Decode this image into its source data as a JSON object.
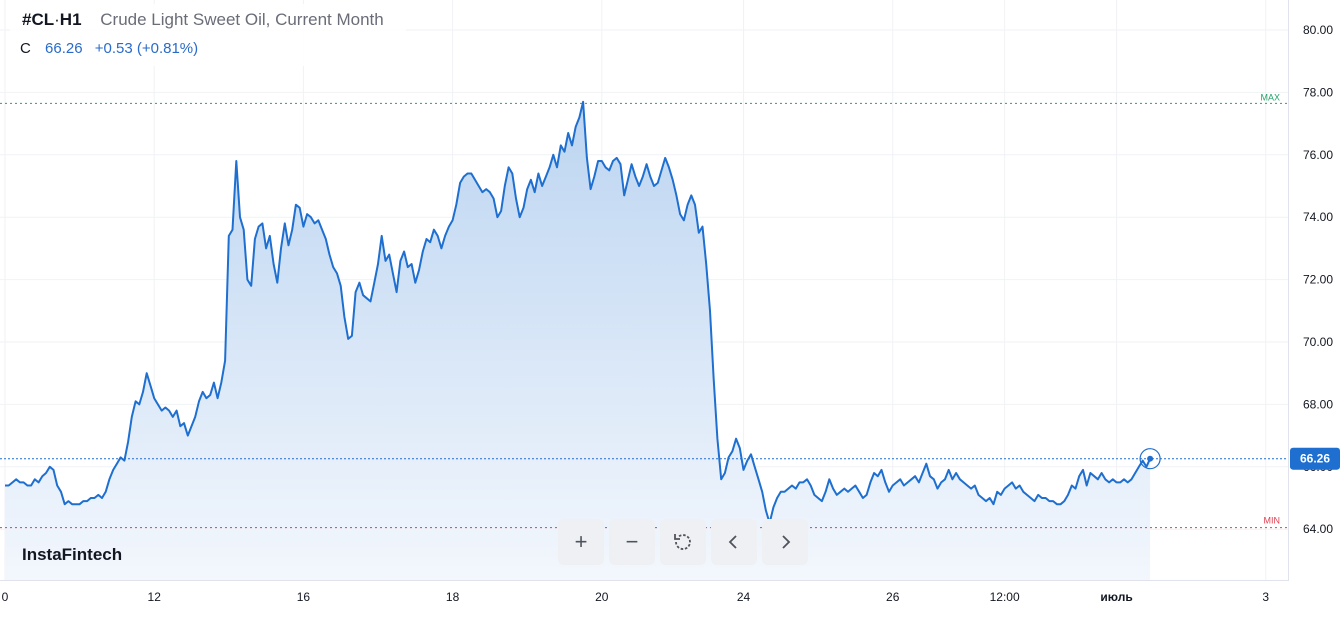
{
  "header": {
    "symbol": "#CL",
    "separator": "·",
    "timeframe": "H1",
    "instrument_name": "Crude Light Sweet Oil, Current Month",
    "close_label": "C",
    "close_value": "66.26",
    "change": "+0.53 (+0.81%)"
  },
  "brand": "InstaFintech",
  "toolbar": {
    "zoom_in": "+",
    "zoom_out": "−"
  },
  "colors": {
    "line": "#1e6fd0",
    "area_top": "#bcd5f1",
    "area_bottom": "#f3f7fd",
    "last_price_tag": "#1e6fd0",
    "max_line": "#26a269",
    "min_line": "#e04050",
    "grid": "#f0f2f5"
  },
  "chart_data": {
    "type": "area",
    "title": "Crude Light Sweet Oil, Current Month",
    "ylim": [
      62.5,
      80.5
    ],
    "y_ticks": [
      "64.00",
      "66.00",
      "68.00",
      "70.00",
      "72.00",
      "74.00",
      "76.00",
      "78.00",
      "80.00"
    ],
    "x_ticks": [
      {
        "label": "0",
        "at": 0
      },
      {
        "label": "12",
        "at": 40
      },
      {
        "label": "16",
        "at": 80
      },
      {
        "label": "18",
        "at": 120
      },
      {
        "label": "20",
        "at": 160
      },
      {
        "label": "24",
        "at": 198
      },
      {
        "label": "26",
        "at": 238
      },
      {
        "label": "12:00",
        "at": 268
      },
      {
        "label": "июль",
        "at": 298
      },
      {
        "label": "3",
        "at": 338
      }
    ],
    "last_value": 66.26,
    "last_label": "66.26",
    "max_value": 77.65,
    "max_label": "MAX",
    "min_value": 64.05,
    "min_label": "MIN",
    "series": [
      {
        "values": [
          65.4,
          65.4,
          65.5,
          65.6,
          65.5,
          65.5,
          65.4,
          65.4,
          65.6,
          65.5,
          65.7,
          65.8,
          66.0,
          65.9,
          65.4,
          65.2,
          64.8,
          64.9,
          64.8,
          64.8,
          64.8,
          64.9,
          64.9,
          65.0,
          65.0,
          65.1,
          65.0,
          65.2,
          65.6,
          65.9,
          66.1,
          66.3,
          66.2,
          66.8,
          67.6,
          68.1,
          68.0,
          68.4,
          69.0,
          68.6,
          68.2,
          68.0,
          67.8,
          67.9,
          67.8,
          67.6,
          67.8,
          67.3,
          67.4,
          67.0,
          67.3,
          67.6,
          68.1,
          68.4,
          68.2,
          68.3,
          68.7,
          68.2,
          68.7,
          69.4,
          73.4,
          73.6,
          75.8,
          74.0,
          73.6,
          72.0,
          71.8,
          73.3,
          73.7,
          73.8,
          73.0,
          73.4,
          72.5,
          71.9,
          73.0,
          73.8,
          73.1,
          73.6,
          74.4,
          74.3,
          73.7,
          74.1,
          74.0,
          73.8,
          73.9,
          73.6,
          73.3,
          72.8,
          72.4,
          72.2,
          71.8,
          70.8,
          70.1,
          70.2,
          71.6,
          71.9,
          71.5,
          71.4,
          71.3,
          71.9,
          72.5,
          73.4,
          72.6,
          72.8,
          72.2,
          71.6,
          72.6,
          72.9,
          72.4,
          72.5,
          71.9,
          72.3,
          72.9,
          73.3,
          73.2,
          73.6,
          73.4,
          73.0,
          73.4,
          73.7,
          73.9,
          74.4,
          75.1,
          75.3,
          75.4,
          75.4,
          75.2,
          75.0,
          74.8,
          74.9,
          74.8,
          74.6,
          74.0,
          74.2,
          75.0,
          75.6,
          75.4,
          74.6,
          74.0,
          74.3,
          74.9,
          75.2,
          74.8,
          75.4,
          75.0,
          75.3,
          75.6,
          76.0,
          75.6,
          76.3,
          76.1,
          76.7,
          76.3,
          76.9,
          77.2,
          77.7,
          75.9,
          74.9,
          75.3,
          75.8,
          75.8,
          75.6,
          75.5,
          75.8,
          75.9,
          75.7,
          74.7,
          75.2,
          75.7,
          75.3,
          75.0,
          75.3,
          75.7,
          75.3,
          75.0,
          75.1,
          75.5,
          75.9,
          75.6,
          75.2,
          74.7,
          74.1,
          73.9,
          74.4,
          74.7,
          74.4,
          73.5,
          73.7,
          72.5,
          71.0,
          68.8,
          66.9,
          65.6,
          65.8,
          66.3,
          66.5,
          66.9,
          66.6,
          65.9,
          66.2,
          66.4,
          66.0,
          65.6,
          65.2,
          64.6,
          64.2,
          64.7,
          65.0,
          65.2,
          65.2,
          65.3,
          65.4,
          65.3,
          65.5,
          65.5,
          65.6,
          65.4,
          65.1,
          65.0,
          64.9,
          65.2,
          65.6,
          65.3,
          65.1,
          65.2,
          65.3,
          65.2,
          65.3,
          65.4,
          65.2,
          65.0,
          65.1,
          65.5,
          65.8,
          65.7,
          65.9,
          65.5,
          65.2,
          65.4,
          65.5,
          65.6,
          65.4,
          65.5,
          65.6,
          65.7,
          65.5,
          65.8,
          66.1,
          65.7,
          65.6,
          65.3,
          65.5,
          65.6,
          65.9,
          65.6,
          65.8,
          65.6,
          65.5,
          65.4,
          65.3,
          65.4,
          65.1,
          65.0,
          64.9,
          65.0,
          64.8,
          65.2,
          65.1,
          65.3,
          65.4,
          65.5,
          65.3,
          65.4,
          65.2,
          65.1,
          65.0,
          64.9,
          65.1,
          65.0,
          65.0,
          64.9,
          64.9,
          64.8,
          64.8,
          64.9,
          65.1,
          65.4,
          65.3,
          65.7,
          65.9,
          65.4,
          65.8,
          65.7,
          65.6,
          65.8,
          65.6,
          65.5,
          65.6,
          65.5,
          65.5,
          65.6,
          65.5,
          65.6,
          65.8,
          66.0,
          66.2,
          66.0,
          66.26
        ]
      }
    ]
  }
}
